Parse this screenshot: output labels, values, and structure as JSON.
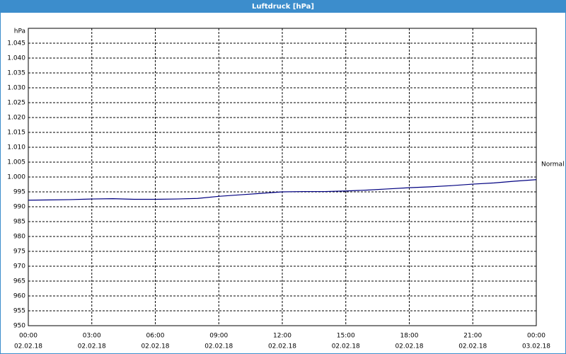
{
  "chart_data": {
    "type": "line",
    "title": "Luftdruck [hPa]",
    "y_label": "hPa",
    "x": [
      0,
      1,
      2,
      3,
      4,
      5,
      6,
      7,
      8,
      9,
      10,
      11,
      12,
      13,
      14,
      15,
      16,
      17,
      18,
      19,
      20,
      21,
      22,
      23,
      24
    ],
    "series": [
      {
        "name": "Normal",
        "color": "#000080",
        "values": [
          992.2,
          992.3,
          992.4,
          992.6,
          992.7,
          992.5,
          992.5,
          992.6,
          992.8,
          993.5,
          994.0,
          994.5,
          995.0,
          995.1,
          995.1,
          995.3,
          995.6,
          996.0,
          996.4,
          996.7,
          997.1,
          997.6,
          998.0,
          998.6,
          999.1
        ]
      }
    ],
    "xlim": [
      0,
      24
    ],
    "xticks": [
      {
        "value": 0,
        "label": "00:00",
        "date": "02.02.18"
      },
      {
        "value": 3,
        "label": "03:00",
        "date": "02.02.18"
      },
      {
        "value": 6,
        "label": "06:00",
        "date": "02.02.18"
      },
      {
        "value": 9,
        "label": "09:00",
        "date": "02.02.18"
      },
      {
        "value": 12,
        "label": "12:00",
        "date": "02.02.18"
      },
      {
        "value": 15,
        "label": "15:00",
        "date": "02.02.18"
      },
      {
        "value": 18,
        "label": "18:00",
        "date": "02.02.18"
      },
      {
        "value": 21,
        "label": "21:00",
        "date": "02.02.18"
      },
      {
        "value": 24,
        "label": "00:00",
        "date": "03.02.18"
      }
    ],
    "ylim": [
      950,
      1050
    ],
    "yticks": [
      950,
      955,
      960,
      965,
      970,
      975,
      980,
      985,
      990,
      995,
      {
        "value": 1000,
        "label": "1.000"
      },
      {
        "value": 1005,
        "label": "1.005"
      },
      {
        "value": 1010,
        "label": "1.010"
      },
      {
        "value": 1015,
        "label": "1.015"
      },
      {
        "value": 1020,
        "label": "1.020"
      },
      {
        "value": 1025,
        "label": "1.025"
      },
      {
        "value": 1030,
        "label": "1.030"
      },
      {
        "value": 1035,
        "label": "1.035"
      },
      {
        "value": 1040,
        "label": "1.040"
      },
      {
        "value": 1045,
        "label": "1.045"
      }
    ],
    "grid": true
  }
}
